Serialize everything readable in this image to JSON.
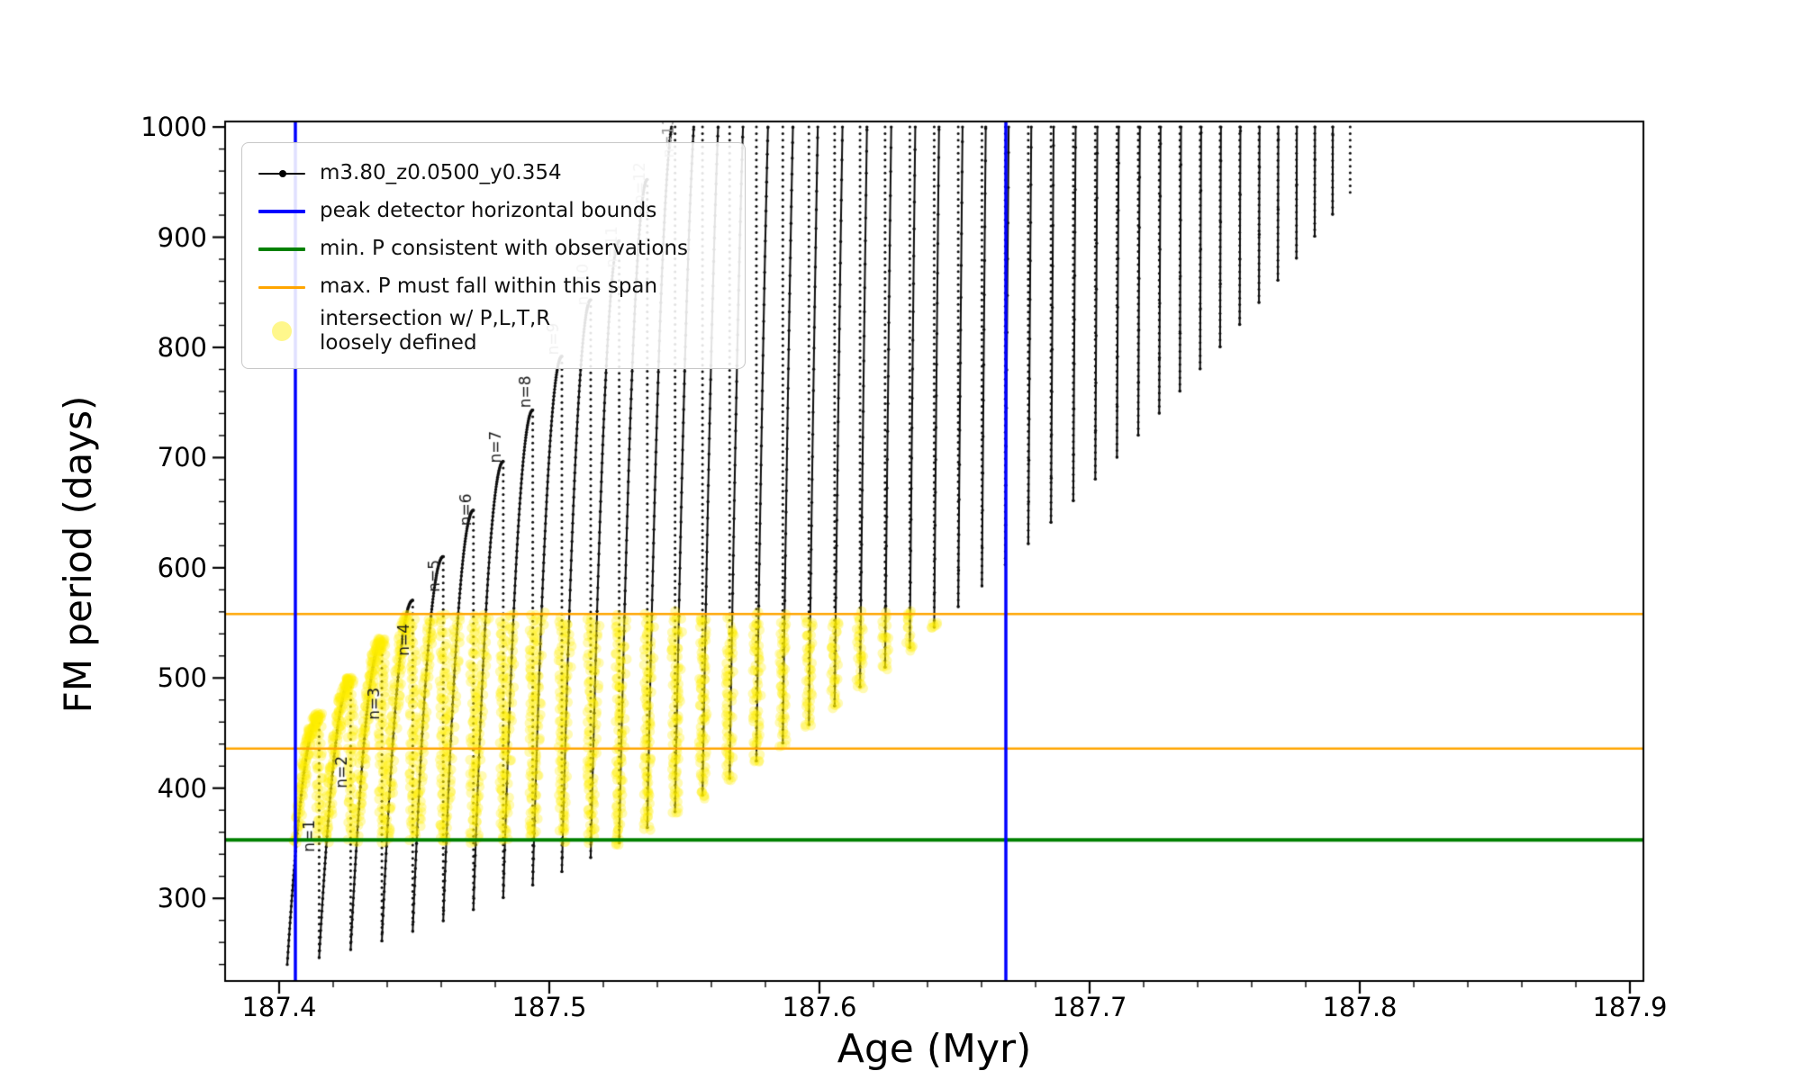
{
  "chart_data": {
    "type": "line",
    "title": "",
    "xlabel": "Age (Myr)",
    "ylabel": "FM period (days)",
    "axes": {
      "xlim": [
        187.38,
        187.905
      ],
      "ylim": [
        225,
        1005
      ],
      "x_tick_values": [
        187.4,
        187.5,
        187.6,
        187.7,
        187.8,
        187.9
      ],
      "x_tick_labels": [
        "187.4",
        "187.5",
        "187.6",
        "187.7",
        "187.8",
        "187.9"
      ],
      "x_minor_step": 0.02,
      "y_tick_values": [
        300,
        400,
        500,
        600,
        700,
        800,
        900,
        1000
      ],
      "y_tick_labels": [
        "300",
        "400",
        "500",
        "600",
        "700",
        "800",
        "900",
        "1000"
      ],
      "y_minor_step": 20,
      "grid": false
    },
    "legend": [
      {
        "type": "line-marker",
        "color": "#000000",
        "lw": 2,
        "label": "m3.80_z0.0500_y0.354"
      },
      {
        "type": "line",
        "color": "#0000ff",
        "lw": 4,
        "label": "peak detector horizontal bounds"
      },
      {
        "type": "line",
        "color": "#008000",
        "lw": 4,
        "label": "min. P consistent with observations"
      },
      {
        "type": "line",
        "color": "#ffa500",
        "lw": 3,
        "label": "max. P must fall within this span"
      },
      {
        "type": "dot",
        "color": "#ffee00",
        "alpha": 0.45,
        "label": "intersection w/ P,L,T,R",
        "label2": "loosely defined"
      }
    ],
    "vlines": {
      "color": "#0000ff",
      "lw": 3.5,
      "x": [
        187.406,
        187.669
      ],
      "label": "peak detector horizontal bounds"
    },
    "hlines": {
      "green": {
        "y": 353,
        "color": "#008000",
        "lw": 4,
        "label": "min. P consistent with observations"
      },
      "orange": {
        "color": "#ffa500",
        "lw": 2.5,
        "y": [
          436,
          558
        ],
        "label": "max. P must fall within this span"
      }
    },
    "branch_model": {
      "age_start": 187.403,
      "n_branches": 43,
      "spacing_start": 0.0118,
      "spacing_end": 0.0065,
      "base_poly": [
        240,
        498,
        3260
      ],
      "peak_poly": [
        434.5,
        29.4,
        1.146
      ],
      "p_top": 1000,
      "samples_per_branch": 80,
      "drop_dot_days": 6,
      "color": "#0d0d0d"
    },
    "branch_labels": [
      {
        "label": "n=1",
        "x": 187.4115,
        "y": 342,
        "color": "#1a1a1a"
      },
      {
        "label": "n=2",
        "x": 187.4235,
        "y": 400,
        "color": "#1a1a1a"
      },
      {
        "label": "n=3",
        "x": 187.4355,
        "y": 462,
        "color": "#1a1a1a"
      },
      {
        "label": "n=4",
        "x": 187.4465,
        "y": 520,
        "color": "#1a1a1a"
      },
      {
        "label": "n=5",
        "x": 187.458,
        "y": 578,
        "color": "#1a1a1a"
      },
      {
        "label": "n=6",
        "x": 187.4695,
        "y": 638,
        "color": "#1a1a1a"
      },
      {
        "label": "n=7",
        "x": 187.4805,
        "y": 695,
        "color": "#1a1a1a"
      },
      {
        "label": "n=8",
        "x": 187.4915,
        "y": 745,
        "color": "#1a1a1a"
      },
      {
        "label": "n=9",
        "x": 187.502,
        "y": 793,
        "color": "#777777"
      },
      {
        "label": "n=10",
        "x": 187.513,
        "y": 838,
        "color": "#999999"
      },
      {
        "label": "n=11",
        "x": 187.5235,
        "y": 872,
        "color": "#999999"
      },
      {
        "label": "n=12",
        "x": 187.534,
        "y": 930,
        "color": "#999999"
      },
      {
        "label": "n=13",
        "x": 187.5445,
        "y": 972,
        "color": "#999999"
      }
    ],
    "highlight": {
      "color": "#ffee00",
      "alpha": 0.3,
      "p_min": 350,
      "p_max": 558,
      "t_min": 187.406,
      "t_max": 187.669,
      "radius": 5.5,
      "jitter": 4,
      "per_point": 2
    }
  }
}
